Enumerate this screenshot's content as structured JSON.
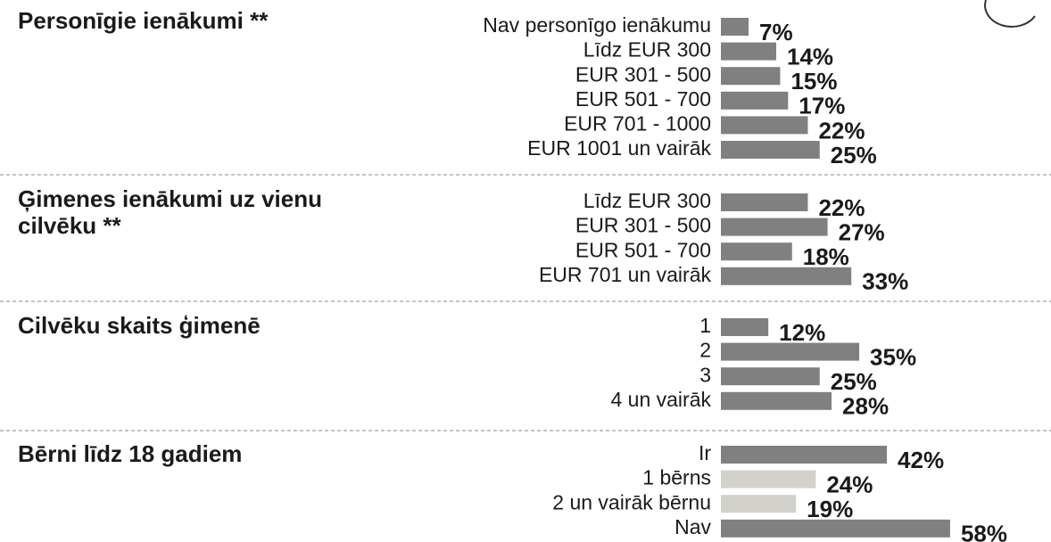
{
  "chart_data": [
    {
      "type": "bar",
      "title": "Personīgie ienākumi **",
      "color": "#808080",
      "categories": [
        "Nav personīgo ienākumu",
        "Līdz EUR 300",
        "EUR 301 - 500",
        "EUR 501 - 700",
        "EUR 701 - 1000",
        "EUR 1001 un vairāk"
      ],
      "values": [
        7,
        14,
        15,
        17,
        22,
        25
      ],
      "value_labels": [
        "7%",
        "14%",
        "15%",
        "17%",
        "22%",
        "25%"
      ]
    },
    {
      "type": "bar",
      "title": "Ģimenes ienākumi uz vienu cilvēku **",
      "color": "#808080",
      "categories": [
        "Līdz EUR 300",
        "EUR 301 - 500",
        "EUR 501 - 700",
        "EUR 701 un vairāk"
      ],
      "values": [
        22,
        27,
        18,
        33
      ],
      "value_labels": [
        "22%",
        "27%",
        "18%",
        "33%"
      ]
    },
    {
      "type": "bar",
      "title": "Cilvēku skaits ģimenē",
      "color": "#808080",
      "categories": [
        "1",
        "2",
        "3",
        "4 un vairāk"
      ],
      "values": [
        12,
        35,
        25,
        28
      ],
      "value_labels": [
        "12%",
        "35%",
        "25%",
        "28%"
      ]
    },
    {
      "type": "bar",
      "title": "Bērni līdz 18 gadiem",
      "color": "#808080",
      "colors": [
        "#808080",
        "#d2d1cb",
        "#d2d1cb",
        "#808080"
      ],
      "categories": [
        "Ir",
        "1 bērns",
        "2 un vairāk bērnu",
        "Nav"
      ],
      "values": [
        42,
        24,
        19,
        58
      ],
      "value_labels": [
        "42%",
        "24%",
        "19%",
        "58%"
      ]
    }
  ]
}
